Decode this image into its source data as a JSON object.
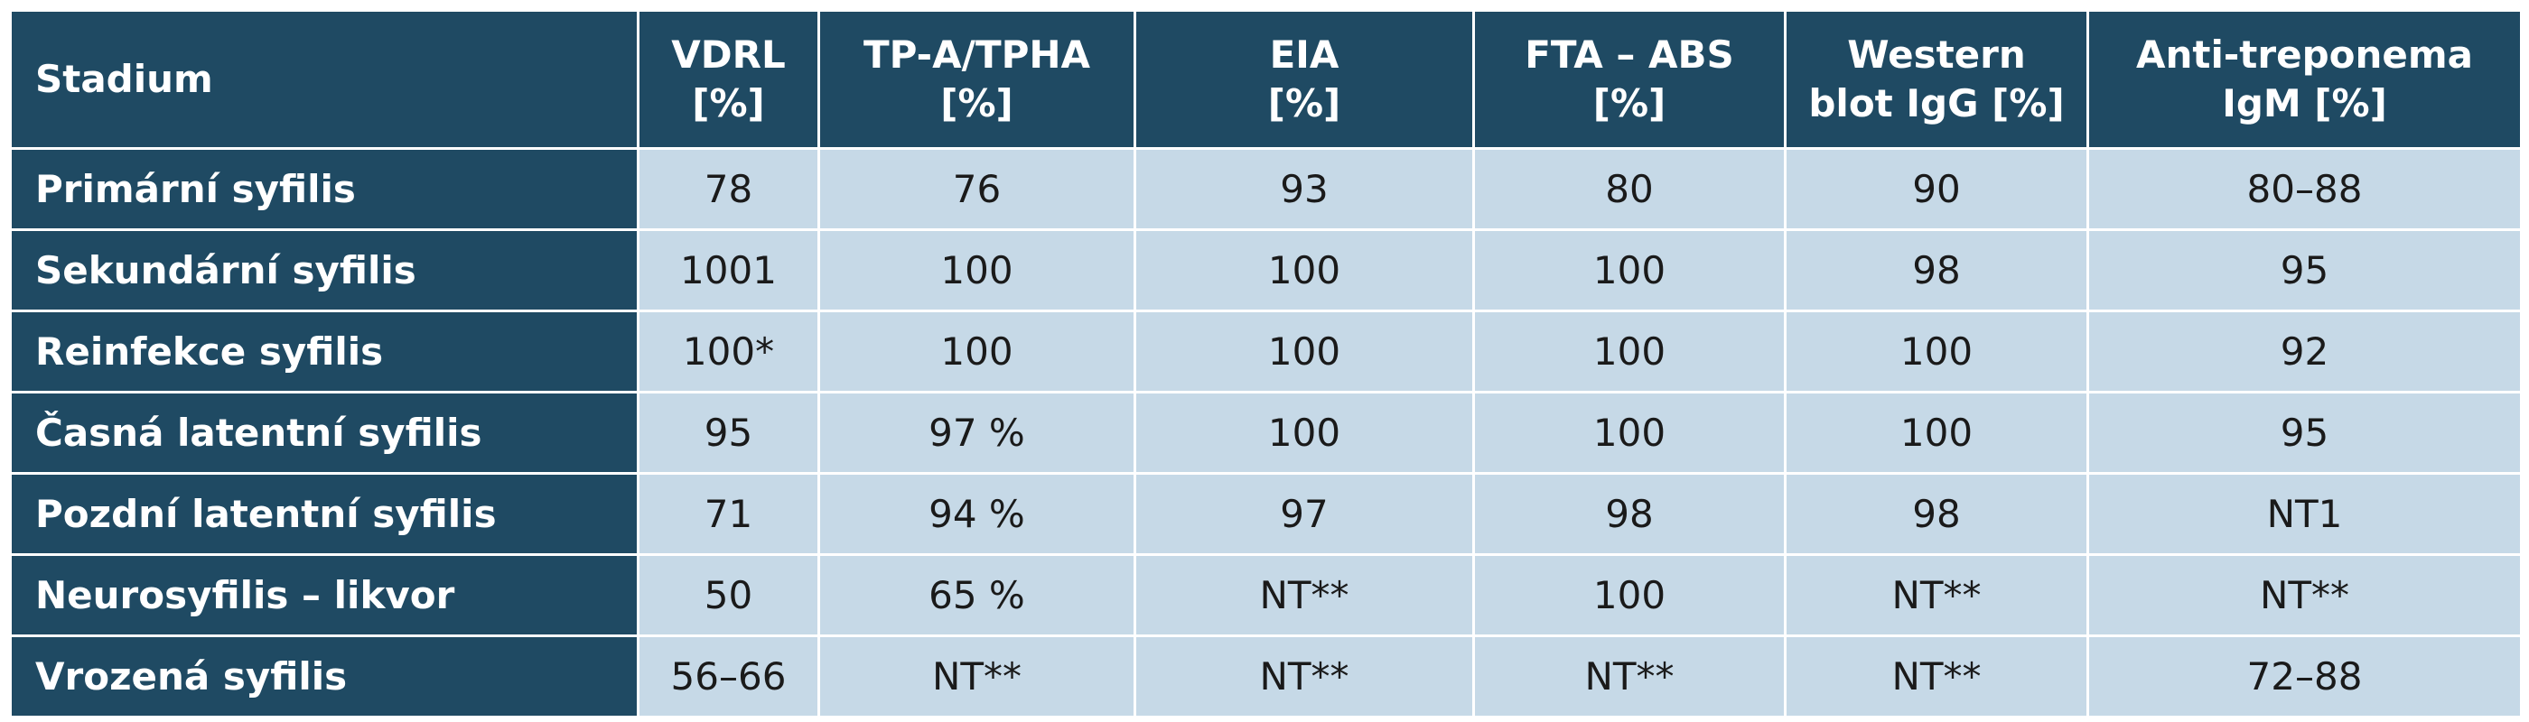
{
  "table": {
    "header": [
      [
        "Stadium"
      ],
      [
        "VDRL",
        "[%]"
      ],
      [
        "TP-A/TPHA",
        "[%]"
      ],
      [
        "EIA",
        "[%]"
      ],
      [
        "FTA – ABS",
        "[%]"
      ],
      [
        "Western",
        "blot IgG [%]"
      ],
      [
        "Anti-treponema",
        "IgM [%]"
      ]
    ],
    "rows": [
      [
        "Primární syfilis",
        "78",
        "76",
        "93",
        "80",
        "90",
        "80–88"
      ],
      [
        "Sekundární syfilis",
        "1001",
        "100",
        "100",
        "100",
        "98",
        "95"
      ],
      [
        "Reinfekce syfilis",
        "100*",
        "100",
        "100",
        "100",
        "100",
        "92"
      ],
      [
        "Časná latentní syfilis",
        "95",
        "97 %",
        "100",
        "100",
        "100",
        "95"
      ],
      [
        "Pozdní latentní syfilis",
        "71",
        "94 %",
        "97",
        "98",
        "98",
        "NT1"
      ],
      [
        "Neurosyfilis – likvor",
        "50",
        "65 %",
        "NT**",
        "100",
        "NT**",
        "NT**"
      ],
      [
        "Vrozená syfilis",
        "56–66",
        "NT**",
        "NT**",
        "NT**",
        "NT**",
        "72–88"
      ]
    ]
  }
}
